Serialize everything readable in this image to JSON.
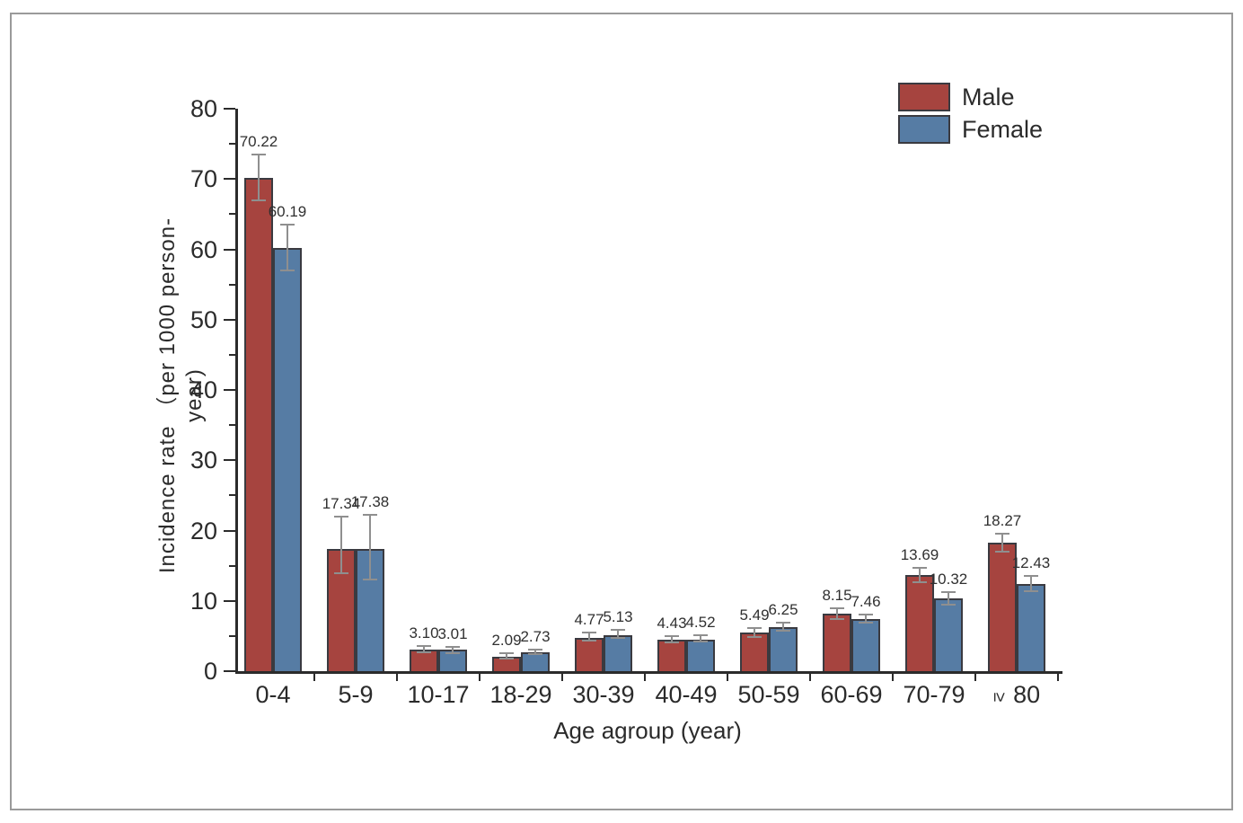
{
  "figure": {
    "kind": "grouped bar chart with error bars",
    "background": "#ffffff",
    "frame_border_color": "#9a9a9a"
  },
  "chart_data": {
    "type": "bar",
    "title": "",
    "xlabel": "Age agroup (year)",
    "ylabel": "Incidence rate （per 1000 person-year)",
    "ylim": [
      0,
      80
    ],
    "ytick_step": 10,
    "y_minor_step": 5,
    "ytick_labels": [
      "0",
      "10",
      "20",
      "30",
      "40",
      "50",
      "60",
      "70",
      "80"
    ],
    "grid": false,
    "legend_position": "top-right",
    "categories": [
      "0-4",
      "5-9",
      "10-17",
      "18-29",
      "30-39",
      "40-49",
      "50-59",
      "60-69",
      "70-79",
      "≥ 80"
    ],
    "series": [
      {
        "name": "Male",
        "color": "#a6443f",
        "values": [
          70.22,
          17.34,
          3.1,
          2.09,
          4.77,
          4.43,
          5.49,
          8.15,
          13.69,
          18.27
        ],
        "labels": [
          "70.22",
          "17.34",
          "3.10",
          "2.09",
          "4.77",
          "4.43",
          "5.49",
          "8.15",
          "13.69",
          "18.27"
        ],
        "error_upper": [
          73.5,
          22.0,
          3.6,
          2.5,
          5.5,
          5.0,
          6.1,
          8.9,
          14.7,
          19.6
        ],
        "error_lower": [
          67.0,
          13.9,
          2.7,
          1.8,
          4.4,
          4.1,
          4.9,
          7.4,
          12.7,
          17.0
        ]
      },
      {
        "name": "Female",
        "color": "#567ca4",
        "values": [
          60.19,
          17.38,
          3.01,
          2.73,
          5.13,
          4.52,
          6.25,
          7.46,
          10.32,
          12.43
        ],
        "labels": [
          "60.19",
          "17.38",
          "3.01",
          "2.73",
          "5.13",
          "4.52",
          "6.25",
          "7.46",
          "10.32",
          "12.43"
        ],
        "error_upper": [
          63.5,
          22.2,
          3.5,
          3.1,
          5.9,
          5.1,
          6.9,
          8.1,
          11.3,
          13.6
        ],
        "error_lower": [
          57.0,
          13.0,
          2.6,
          2.4,
          4.7,
          4.2,
          5.7,
          6.9,
          9.4,
          11.4
        ]
      }
    ]
  },
  "legend": {
    "items": [
      {
        "label": "Male",
        "color": "#a6443f"
      },
      {
        "label": "Female",
        "color": "#567ca4"
      }
    ]
  },
  "colors": {
    "axis": "#2b2b2b",
    "text": "#2b2b2b",
    "bar_border": "#3a3a40",
    "error_bar": "#8f8f8f"
  }
}
